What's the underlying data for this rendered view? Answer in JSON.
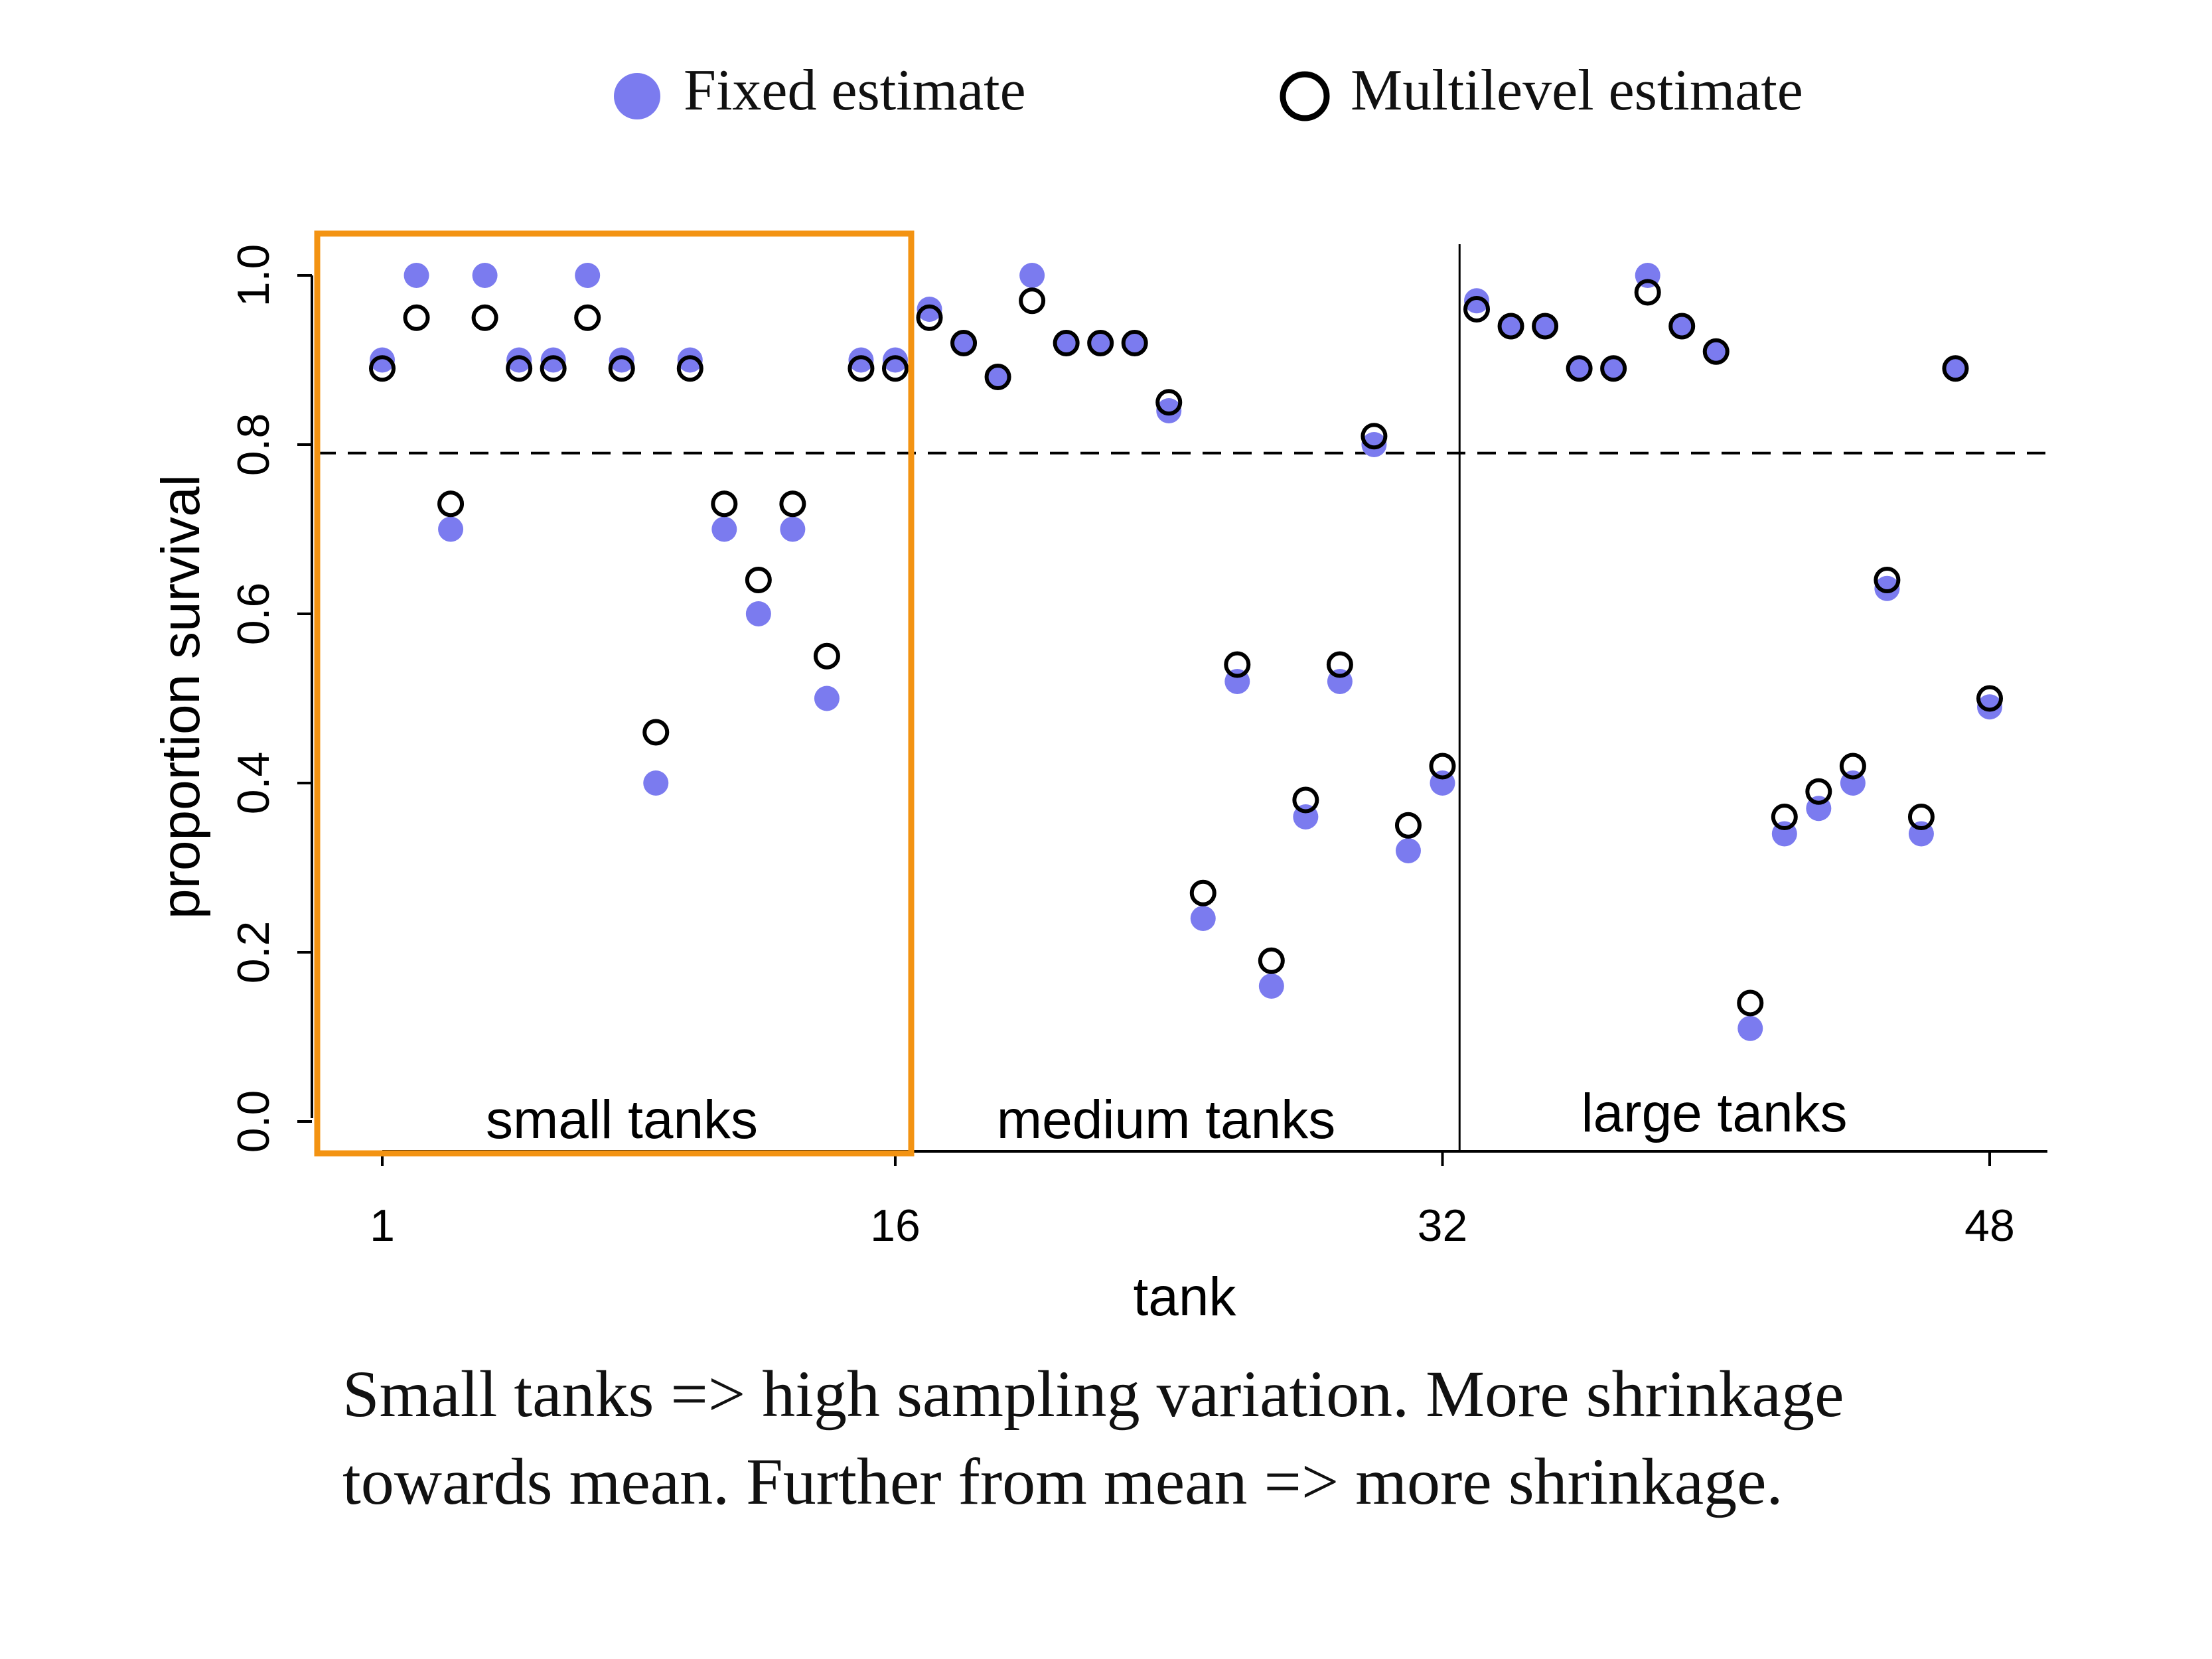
{
  "legend": {
    "fixed_label": "Fixed estimate",
    "multilevel_label": "Multilevel estimate"
  },
  "colors": {
    "fixed": "#7b7bef",
    "multilevel_stroke": "#000000",
    "highlight_box": "#f39312",
    "axis": "#000000"
  },
  "caption": {
    "line1": "Small tanks => high sampling variation. More shrinkage",
    "line2": "towards mean. Further from mean => more shrinkage."
  },
  "chart_data": {
    "type": "scatter",
    "xlabel": "tank",
    "ylabel": "proportion survival",
    "xlim": [
      0,
      50
    ],
    "ylim": [
      0,
      1
    ],
    "x_ticks": [
      1,
      16,
      32,
      48
    ],
    "y_ticks": [
      0.0,
      0.2,
      0.4,
      0.6,
      0.8,
      1.0
    ],
    "y_tick_labels": [
      "0.0",
      "0.2",
      "0.4",
      "0.6",
      "0.8",
      "1.0"
    ],
    "mean_line": 0.79,
    "group_labels": [
      "small tanks",
      "medium tanks",
      "large tanks"
    ],
    "group_boundaries": [
      16.5,
      32.5
    ],
    "highlighted_group": "small tanks",
    "series": [
      {
        "name": "Fixed estimate",
        "marker": "filled-circle",
        "x": [
          1,
          2,
          3,
          4,
          5,
          6,
          7,
          8,
          9,
          10,
          11,
          12,
          13,
          14,
          15,
          16,
          17,
          18,
          19,
          20,
          21,
          22,
          23,
          24,
          25,
          26,
          27,
          28,
          29,
          30,
          31,
          32,
          33,
          34,
          35,
          36,
          37,
          38,
          39,
          40,
          41,
          42,
          43,
          44,
          45,
          46,
          47,
          48
        ],
        "y": [
          0.9,
          1.0,
          0.7,
          1.0,
          0.9,
          0.9,
          1.0,
          0.9,
          0.4,
          0.9,
          0.7,
          0.6,
          0.7,
          0.5,
          0.9,
          0.9,
          0.96,
          0.92,
          0.88,
          1.0,
          0.92,
          0.92,
          0.92,
          0.84,
          0.24,
          0.52,
          0.16,
          0.36,
          0.52,
          0.8,
          0.32,
          0.4,
          0.97,
          0.94,
          0.94,
          0.89,
          0.89,
          1.0,
          0.94,
          0.91,
          0.11,
          0.34,
          0.37,
          0.4,
          0.63,
          0.34,
          0.89,
          0.49
        ]
      },
      {
        "name": "Multilevel estimate",
        "marker": "open-circle",
        "x": [
          1,
          2,
          3,
          4,
          5,
          6,
          7,
          8,
          9,
          10,
          11,
          12,
          13,
          14,
          15,
          16,
          17,
          18,
          19,
          20,
          21,
          22,
          23,
          24,
          25,
          26,
          27,
          28,
          29,
          30,
          31,
          32,
          33,
          34,
          35,
          36,
          37,
          38,
          39,
          40,
          41,
          42,
          43,
          44,
          45,
          46,
          47,
          48
        ],
        "y": [
          0.89,
          0.95,
          0.73,
          0.95,
          0.89,
          0.89,
          0.95,
          0.89,
          0.46,
          0.89,
          0.73,
          0.64,
          0.73,
          0.55,
          0.89,
          0.89,
          0.95,
          0.92,
          0.88,
          0.97,
          0.92,
          0.92,
          0.92,
          0.85,
          0.27,
          0.54,
          0.19,
          0.38,
          0.54,
          0.81,
          0.35,
          0.42,
          0.96,
          0.94,
          0.94,
          0.89,
          0.89,
          0.98,
          0.94,
          0.91,
          0.14,
          0.36,
          0.39,
          0.42,
          0.64,
          0.36,
          0.89,
          0.5
        ]
      }
    ]
  }
}
